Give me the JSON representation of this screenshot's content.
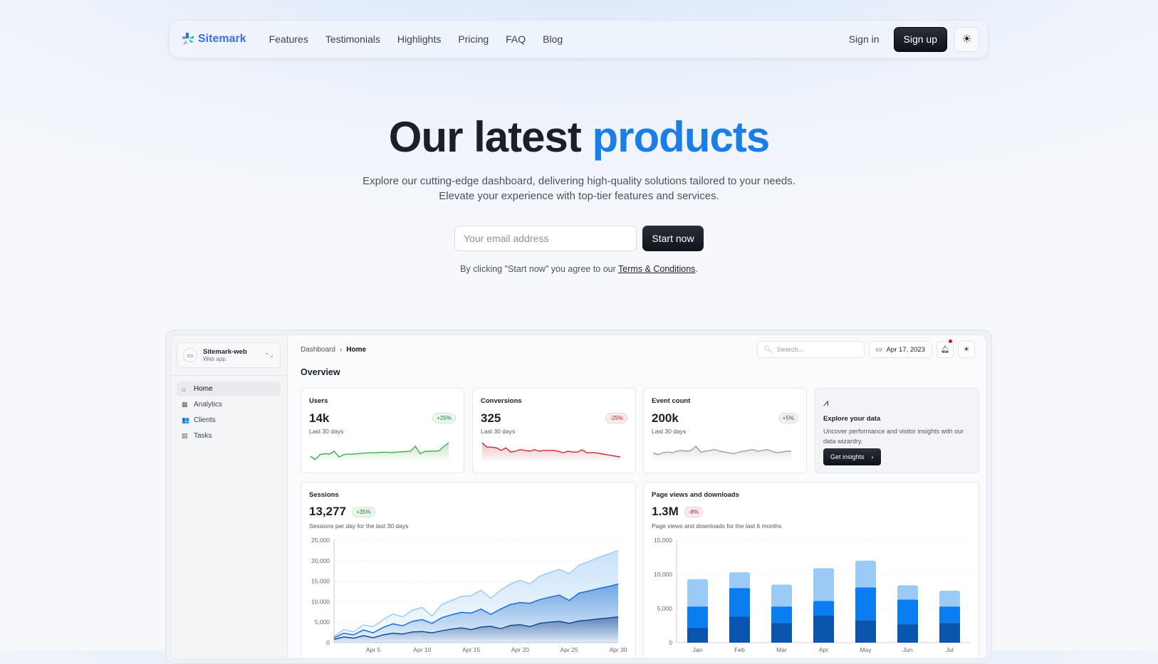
{
  "nav": {
    "brand": "Sitemark",
    "links": [
      "Features",
      "Testimonials",
      "Highlights",
      "Pricing",
      "FAQ",
      "Blog"
    ],
    "sign_in": "Sign in",
    "sign_up": "Sign up",
    "theme_icon": "sun-icon"
  },
  "hero": {
    "title_a": "Our latest",
    "title_b": "products",
    "line1": "Explore our cutting-edge dashboard, delivering high-quality solutions tailored to your needs.",
    "line2": "Elevate your experience with top-tier features and services.",
    "email_placeholder": "Your email address",
    "start": "Start now",
    "terms_pre": "By clicking \"Start now\" you agree to our ",
    "terms_link": "Terms & Conditions",
    "terms_post": ".",
    "accent": "#1a7de8"
  },
  "dash": {
    "project": {
      "name": "Sitemark-web",
      "type": "Web app"
    },
    "menu": [
      {
        "label": "Home",
        "icon": "home-icon"
      },
      {
        "label": "Analytics",
        "icon": "analytics-icon"
      },
      {
        "label": "Clients",
        "icon": "people-icon"
      },
      {
        "label": "Tasks",
        "icon": "clipboard-icon"
      }
    ],
    "breadcrumb": [
      "Dashboard",
      "Home"
    ],
    "search_placeholder": "Search...",
    "date": "Apr 17, 2023",
    "overview": "Overview",
    "stats": [
      {
        "label": "Users",
        "value": "14k",
        "period": "Last 30 days",
        "trend": "+25%",
        "color": "#3fae4f",
        "spark": [
          3,
          1,
          4,
          4.5,
          4.3,
          6,
          2.5,
          4,
          4.2,
          4.2,
          4.6,
          4.8,
          5,
          5,
          5.2,
          5.3,
          5.4,
          5.2,
          5.5,
          5.6,
          5.8,
          6,
          9,
          4.5,
          5.9,
          6,
          6,
          6.2,
          9,
          11
        ]
      },
      {
        "label": "Conversions",
        "value": "325",
        "period": "Last 30 days",
        "trend": "-25%",
        "color": "#c62f36",
        "spark": [
          11,
          8.5,
          8.5,
          8,
          6.5,
          8,
          5.5,
          6,
          7,
          6.5,
          6,
          7,
          6,
          6.5,
          6.5,
          6.5,
          6,
          5,
          6,
          5.5,
          5.5,
          6.8,
          5,
          5.2,
          5,
          4.5,
          4,
          3.5,
          3,
          2.5
        ]
      },
      {
        "label": "Event count",
        "value": "200k",
        "period": "Last 30 days",
        "trend": "+5%",
        "color": "#9aa0ad",
        "spark": [
          5,
          4,
          5,
          5.5,
          5,
          6,
          6.5,
          6,
          6.5,
          9,
          5.5,
          6,
          6.5,
          7,
          6,
          5.5,
          5,
          4.5,
          5.5,
          6,
          6.5,
          7,
          6,
          6.5,
          7,
          6,
          5,
          5.5,
          6,
          6
        ]
      }
    ],
    "explore": {
      "title": "Explore your data",
      "desc": "Uncover performance and visitor insights with our data wizardry.",
      "button": "Get insights"
    }
  },
  "chart_data": [
    {
      "type": "area",
      "title": "Sessions",
      "value": "13,277",
      "trend": "+35%",
      "subtitle": "Sessions per day for the last 30 days",
      "ylim": [
        0,
        25000
      ],
      "yticks": [
        "0",
        "5,000",
        "10,000",
        "15,000",
        "20,000",
        "25,000"
      ],
      "xticks": [
        "Apr 5",
        "Apr 10",
        "Apr 15",
        "Apr 20",
        "Apr 25",
        "Apr 30"
      ],
      "x": [
        1,
        2,
        3,
        4,
        5,
        6,
        7,
        8,
        9,
        10,
        11,
        12,
        13,
        14,
        15,
        16,
        17,
        18,
        19,
        20,
        21,
        22,
        23,
        24,
        25,
        26,
        27,
        28,
        29,
        30
      ],
      "grid": true,
      "series": [
        {
          "color": "#9ccaf5",
          "values": [
            1500,
            3200,
            2600,
            4300,
            3900,
            5600,
            7000,
            6300,
            7900,
            8600,
            6500,
            9300,
            10300,
            11300,
            11400,
            12800,
            10800,
            12800,
            14300,
            15200,
            14300,
            16200,
            17100,
            17900,
            16800,
            18900,
            19800,
            20800,
            21600,
            22500
          ]
        },
        {
          "color": "#1b6fd0",
          "values": [
            1200,
            2300,
            1900,
            3100,
            2400,
            3700,
            4600,
            4100,
            5200,
            5600,
            4700,
            6100,
            6800,
            7400,
            7200,
            8200,
            6900,
            8200,
            9300,
            9800,
            9600,
            10500,
            11100,
            11600,
            10300,
            12100,
            12600,
            13200,
            13700,
            14300
          ]
        },
        {
          "color": "#174a8f",
          "values": [
            800,
            1400,
            1100,
            1700,
            1200,
            1900,
            2300,
            2100,
            2600,
            2700,
            2400,
            2900,
            3300,
            3600,
            3200,
            3800,
            4000,
            3400,
            4200,
            4400,
            3900,
            4700,
            5000,
            5200,
            4700,
            5300,
            5500,
            5800,
            6000,
            6300
          ]
        }
      ]
    },
    {
      "type": "bar",
      "stacked": true,
      "title": "Page views and downloads",
      "value": "1.3M",
      "trend": "-8%",
      "subtitle": "Page views and downloads for the last 6 months",
      "ylim": [
        0,
        15000
      ],
      "yticks": [
        "0",
        "5,000",
        "10,000",
        "15,000"
      ],
      "categories": [
        "Jan",
        "Feb",
        "Mar",
        "Apr",
        "May",
        "Jun",
        "Jul"
      ],
      "grid": true,
      "series": [
        {
          "color": "#0a55ad",
          "values": [
            2200,
            3800,
            2900,
            4000,
            3300,
            2700,
            2900
          ]
        },
        {
          "color": "#0a7ef0",
          "values": [
            3100,
            4200,
            2400,
            2100,
            4800,
            3600,
            2400
          ]
        },
        {
          "color": "#9bcaf7",
          "values": [
            4000,
            2300,
            3200,
            4800,
            3900,
            2100,
            2300
          ]
        }
      ]
    }
  ]
}
